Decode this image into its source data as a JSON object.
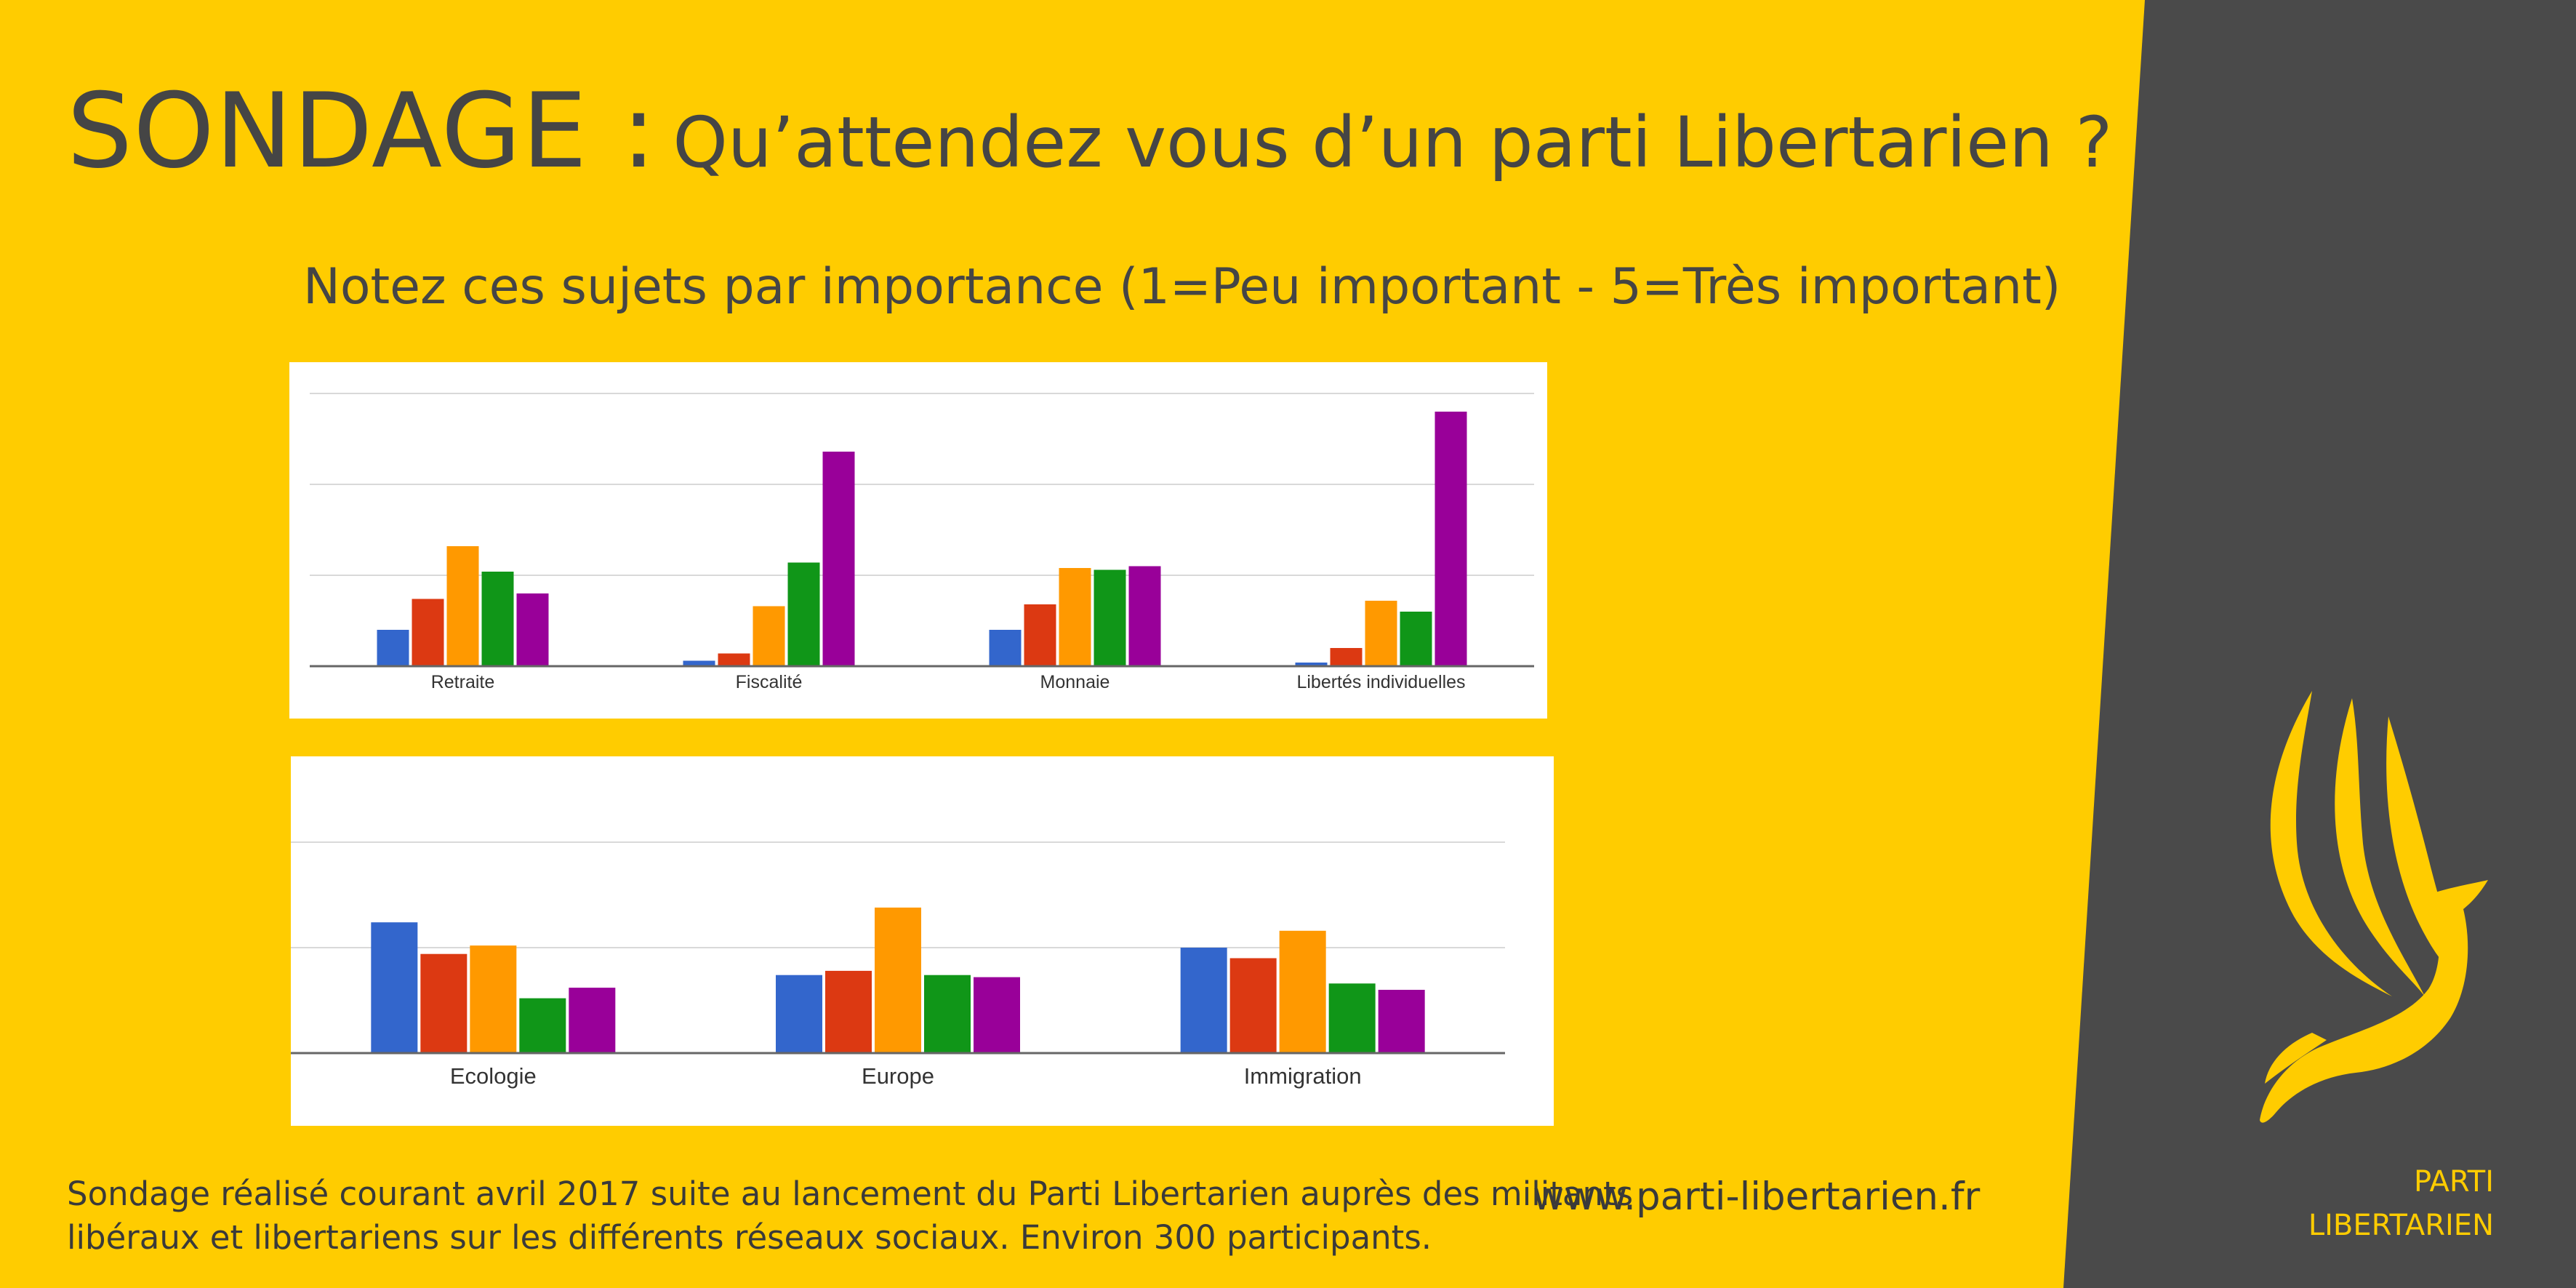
{
  "title": {
    "prefix": "SONDAGE :",
    "question": "Qu’attendez vous d’un parti Libertarien ?"
  },
  "subtitle": "Notez ces sujets par importance (1=Peu important - 5=Très important)",
  "colors": {
    "background": "#FFCC00",
    "panel": "#4A4A4A",
    "series": [
      "#3366CC",
      "#DC3912",
      "#FF9900",
      "#109618",
      "#990099"
    ]
  },
  "chart_data": [
    {
      "type": "bar",
      "title": "",
      "xlabel": "",
      "ylabel": "",
      "grid": true,
      "ylim": [
        0,
        150
      ],
      "categories": [
        "Retraite",
        "Fiscalité",
        "Monnaie",
        "Libertés individuelles"
      ],
      "series": [
        {
          "values": [
            20,
            3,
            20,
            2
          ]
        },
        {
          "values": [
            37,
            7,
            34,
            10
          ]
        },
        {
          "values": [
            66,
            33,
            54,
            36
          ]
        },
        {
          "values": [
            52,
            57,
            53,
            30
          ]
        },
        {
          "values": [
            40,
            118,
            55,
            140
          ]
        }
      ]
    },
    {
      "type": "bar",
      "title": "",
      "xlabel": "",
      "ylabel": "",
      "grid": true,
      "ylim": [
        0,
        100
      ],
      "categories": [
        "Ecologie",
        "Europe",
        "Immigration"
      ],
      "series": [
        {
          "values": [
            62,
            37,
            50
          ]
        },
        {
          "values": [
            47,
            39,
            45
          ]
        },
        {
          "values": [
            51,
            69,
            58
          ]
        },
        {
          "values": [
            26,
            37,
            33
          ]
        },
        {
          "values": [
            31,
            36,
            30
          ]
        }
      ]
    }
  ],
  "footnote": {
    "line1": "Sondage réalisé courant avril 2017 suite au lancement du Parti Libertarien auprès des militants",
    "line2": "libéraux et libertariens sur les différents réseaux sociaux. Environ 300 participants."
  },
  "website": "www.parti-libertarien.fr",
  "brand": {
    "line1": "PARTI",
    "line2": "LIBERTARIEN",
    "logo_icon": "eagle-icon"
  }
}
